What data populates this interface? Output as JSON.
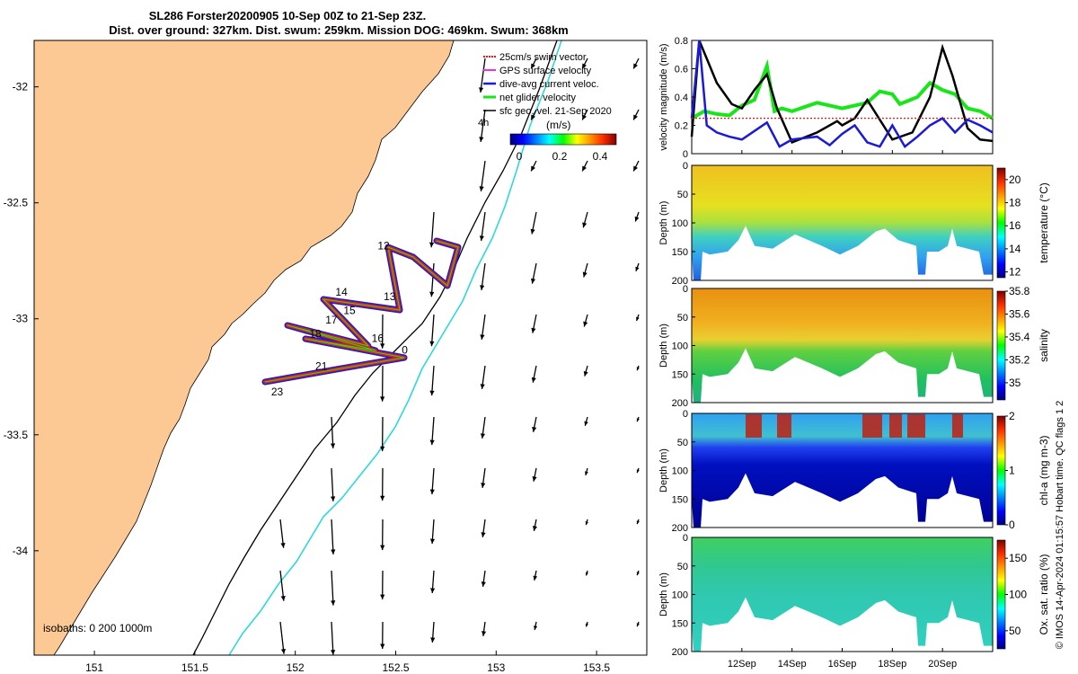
{
  "title": {
    "line1": "SL286 Forster20200905 10-Sep 00Z to 21-Sep 23Z.",
    "line2": "Dist. over ground: 327km. Dist. swum: 259km. Mission DOG: 469km. Swum: 368km"
  },
  "colors": {
    "land": "#fcc994",
    "swim_vector": "#e8191a",
    "gps_velocity": "#e832e8",
    "current": "#1a1ad8",
    "glider": "#19e619",
    "isobath_200": "#000000",
    "isobath_1000": "#30d8d8"
  },
  "map": {
    "lon_ticks": [
      "151",
      "151.5",
      "152",
      "152.5",
      "153",
      "153.5"
    ],
    "lat_ticks": [
      "-32",
      "-32.5",
      "-33",
      "-33.5",
      "-34"
    ],
    "lon_range": [
      150.7,
      153.75
    ],
    "lat_range": [
      -34.45,
      -31.8
    ],
    "isobaths_label": "isobaths: 0   200  1000m",
    "legend": [
      "25cm/s swim vector",
      "GPS surface velocity",
      "dive-avg current veloc.",
      "net glider velocity",
      "sfc geo. vel. 21-Sep 2020"
    ],
    "legend_extra": "4h",
    "colorbar_label": "(m/s)",
    "colorbar_ticks": [
      "0",
      "0.2",
      "0.4"
    ],
    "track_labels": [
      {
        "t": "0",
        "lon": 152.53,
        "lat": -33.15
      },
      {
        "t": "12",
        "lon": 152.41,
        "lat": -32.7
      },
      {
        "t": "13",
        "lon": 152.44,
        "lat": -32.92
      },
      {
        "t": "14",
        "lon": 152.2,
        "lat": -32.9
      },
      {
        "t": "15",
        "lon": 152.24,
        "lat": -32.98
      },
      {
        "t": "16",
        "lon": 152.38,
        "lat": -33.1
      },
      {
        "t": "17",
        "lon": 152.15,
        "lat": -33.02
      },
      {
        "t": "18",
        "lon": 152.07,
        "lat": -33.08
      },
      {
        "t": "21",
        "lon": 152.1,
        "lat": -33.22
      },
      {
        "t": "23",
        "lon": 151.88,
        "lat": -33.33
      }
    ]
  },
  "chart_data": [
    {
      "type": "line",
      "title": "",
      "xlabel": "",
      "ylabel": "velocity magnitude (m/s)",
      "ylim": [
        0,
        0.8
      ],
      "yticks": [
        "0",
        "0.2",
        "0.4",
        "0.6",
        "0.8"
      ],
      "xlim_day": [
        10,
        22
      ],
      "series": [
        {
          "color": "#19e619",
          "x": [
            10,
            10.5,
            11,
            11.5,
            12,
            12.5,
            13,
            13.3,
            13.6,
            14,
            15,
            16,
            17,
            17.5,
            18,
            18.3,
            19,
            19.5,
            20,
            20.5,
            21,
            21.5,
            22
          ],
          "values": [
            0.25,
            0.3,
            0.28,
            0.27,
            0.34,
            0.38,
            0.62,
            0.3,
            0.32,
            0.3,
            0.36,
            0.32,
            0.36,
            0.44,
            0.42,
            0.35,
            0.4,
            0.5,
            0.45,
            0.42,
            0.32,
            0.3,
            0.25
          ]
        },
        {
          "color": "#000000",
          "x": [
            10,
            10.3,
            11,
            11.6,
            12,
            12.5,
            13,
            13.4,
            14,
            15,
            15.8,
            16,
            16.5,
            17,
            18,
            18.8,
            19.5,
            20,
            20.4,
            21,
            21.5,
            22
          ],
          "values": [
            0.12,
            0.8,
            0.5,
            0.35,
            0.32,
            0.45,
            0.56,
            0.32,
            0.08,
            0.15,
            0.23,
            0.2,
            0.25,
            0.38,
            0.1,
            0.15,
            0.4,
            0.75,
            0.55,
            0.18,
            0.1,
            0.09
          ]
        },
        {
          "color": "#1a1ad8",
          "x": [
            10,
            10.3,
            10.6,
            11,
            11.5,
            12,
            12.5,
            13,
            13.5,
            14,
            15,
            15.5,
            16,
            16.5,
            17,
            17.5,
            18,
            18.5,
            19,
            19.5,
            20,
            20.5,
            21,
            21.5,
            22
          ],
          "values": [
            0.25,
            0.8,
            0.2,
            0.15,
            0.12,
            0.1,
            0.16,
            0.22,
            0.05,
            0.1,
            0.12,
            0.06,
            0.14,
            0.2,
            0.08,
            0.05,
            0.2,
            0.05,
            0.12,
            0.2,
            0.25,
            0.15,
            0.24,
            0.2,
            0.15
          ]
        },
        {
          "color": "#e8191a",
          "x": [
            10,
            22
          ],
          "values": [
            0.25,
            0.25
          ]
        }
      ]
    },
    {
      "type": "heatmap",
      "title": "",
      "ylabel": "Depth (m)",
      "zlabel": "temperature (°C)",
      "ylim": [
        0,
        200
      ],
      "yticks": [
        "0",
        "50",
        "100",
        "150",
        "200"
      ],
      "zlim": [
        11.5,
        21
      ],
      "zticks": [
        "12",
        "14",
        "16",
        "18",
        "20"
      ],
      "colormap": [
        "#00007f",
        "#0000ff",
        "#00ffff",
        "#00ff00",
        "#ffff00",
        "#ff8000",
        "#7f0000"
      ]
    },
    {
      "type": "heatmap",
      "title": "",
      "ylabel": "Depth (m)",
      "zlabel": "salinity",
      "ylim": [
        0,
        200
      ],
      "yticks": [
        "0",
        "50",
        "100",
        "150",
        "200"
      ],
      "zlim": [
        34.85,
        35.8
      ],
      "zticks": [
        "35",
        "35.2",
        "35.4",
        "35.6",
        "35.8"
      ],
      "colormap": [
        "#00007f",
        "#0000ff",
        "#00ffff",
        "#00ff00",
        "#ffff00",
        "#ff8000",
        "#7f0000"
      ]
    },
    {
      "type": "heatmap",
      "title": "",
      "ylabel": "Depth (m)",
      "zlabel": "chl-a (mg m-3)",
      "ylim": [
        0,
        200
      ],
      "yticks": [
        "0",
        "50",
        "100",
        "150",
        "200"
      ],
      "zlim": [
        0,
        2
      ],
      "zticks": [
        "0",
        "1",
        "2"
      ],
      "colormap": [
        "#00007f",
        "#0000ff",
        "#00ffff",
        "#00ff00",
        "#ffff00",
        "#ff8000",
        "#7f0000"
      ]
    },
    {
      "type": "heatmap",
      "title": "",
      "ylabel": "Depth (m)",
      "zlabel": "Ox. sat. ratio (%)",
      "ylim": [
        0,
        200
      ],
      "yticks": [
        "0",
        "50",
        "100",
        "150",
        "200"
      ],
      "zlim": [
        25,
        175
      ],
      "zticks": [
        "50",
        "100",
        "150"
      ],
      "colormap": [
        "#00007f",
        "#0000ff",
        "#00ffff",
        "#00ff00",
        "#ffff00",
        "#ff8000",
        "#7f0000"
      ],
      "xticks": [
        "12Sep",
        "14Sep",
        "16Sep",
        "18Sep",
        "20Sep"
      ],
      "xtick_days": [
        12,
        14,
        16,
        18,
        20
      ]
    }
  ],
  "footer_credit": "© IMOS 14-Apr-2024 01:15:57 Hobart time. QC flags 1  2"
}
